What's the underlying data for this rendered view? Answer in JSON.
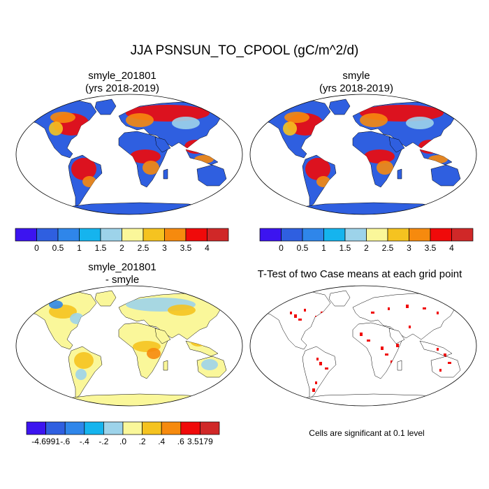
{
  "title": "JJA PSNSUN_TO_CPOOL (gC/m^2/d)",
  "panels": {
    "case1": {
      "line1": "smyle_201801",
      "line2": "(yrs 2018-2019)"
    },
    "case2": {
      "line1": "smyle",
      "line2": "(yrs 2018-2019)"
    },
    "diff": {
      "line1": "smyle_201801",
      "line2": "- smyle"
    },
    "ttest": {
      "line1": "T-Test of two Case means at each grid point"
    }
  },
  "colorbar_main": {
    "colors": [
      "#3c14f0",
      "#2f5fe0",
      "#2f86ea",
      "#15b4ee",
      "#9dd3ea",
      "#faf79a",
      "#f5c320",
      "#f68a0e",
      "#f00a0a",
      "#d02828"
    ],
    "ticks": [
      "0",
      "0.5",
      "1",
      "1.5",
      "2",
      "2.5",
      "3",
      "3.5",
      "4"
    ]
  },
  "colorbar_diff": {
    "colors": [
      "#3c14f0",
      "#2f5fe0",
      "#2f86ea",
      "#15b4ee",
      "#9dd3ea",
      "#faf79a",
      "#f5c320",
      "#f68a0e",
      "#f00a0a",
      "#d02828"
    ],
    "ticks": [
      "-.6",
      "-.4",
      "-.2",
      ".0",
      ".2",
      ".4",
      ".6"
    ],
    "min_label": "-4.6991",
    "max_label": "3.5179"
  },
  "significance_note": "Cells are significant at 0.1 level"
}
